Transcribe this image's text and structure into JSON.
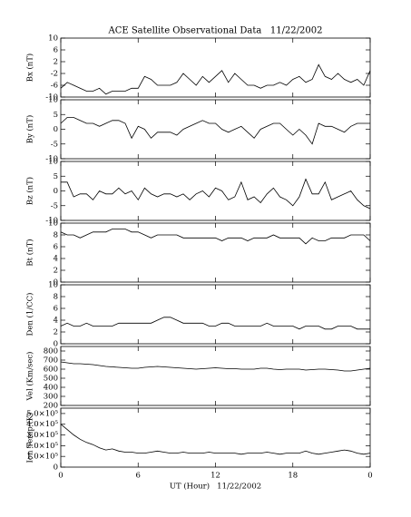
{
  "chart_data": [
    {
      "type": "line",
      "title": "ACE Satellite Observational Data   11/22/2002",
      "y_label": "Bx (nT)",
      "color": "#000000",
      "x": [
        0,
        0.5,
        1,
        1.5,
        2,
        2.5,
        3,
        3.5,
        4,
        4.5,
        5,
        5.5,
        6,
        6.5,
        7,
        7.5,
        8,
        8.5,
        9,
        9.5,
        10,
        10.5,
        11,
        11.5,
        12,
        12.5,
        13,
        13.5,
        14,
        14.5,
        15,
        15.5,
        16,
        16.5,
        17,
        17.5,
        18,
        18.5,
        19,
        19.5,
        20,
        20.5,
        21,
        21.5,
        22,
        22.5,
        23,
        23.5,
        24
      ],
      "values": [
        -7,
        -5,
        -6,
        -7,
        -8,
        -8,
        -7,
        -9,
        -8,
        -8,
        -8,
        -7,
        -7,
        -3,
        -4,
        -6,
        -6,
        -6,
        -5,
        -2,
        -4,
        -6,
        -3,
        -5,
        -3,
        -1,
        -5,
        -2,
        -4,
        -6,
        -6,
        -7,
        -6,
        -6,
        -5,
        -6,
        -4,
        -3,
        -5,
        -4,
        1,
        -3,
        -4,
        -2,
        -4,
        -5,
        -4,
        -6,
        -1
      ],
      "ylim": [
        -10,
        10
      ],
      "yticks": [
        -10,
        -6,
        -2,
        2,
        6,
        10
      ]
    },
    {
      "type": "line",
      "y_label": "By (nT)",
      "color": "#000000",
      "x": [
        0,
        0.5,
        1,
        1.5,
        2,
        2.5,
        3,
        3.5,
        4,
        4.5,
        5,
        5.5,
        6,
        6.5,
        7,
        7.5,
        8,
        8.5,
        9,
        9.5,
        10,
        10.5,
        11,
        11.5,
        12,
        12.5,
        13,
        13.5,
        14,
        14.5,
        15,
        15.5,
        16,
        16.5,
        17,
        17.5,
        18,
        18.5,
        19,
        19.5,
        20,
        20.5,
        21,
        21.5,
        22,
        22.5,
        23,
        23.5,
        24
      ],
      "values": [
        2,
        4,
        4,
        3,
        2,
        2,
        1,
        2,
        3,
        3,
        2,
        -3,
        1,
        0,
        -3,
        -1,
        -1,
        -1,
        -2,
        0,
        1,
        2,
        3,
        2,
        2,
        0,
        -1,
        0,
        1,
        -1,
        -3,
        0,
        1,
        2,
        2,
        0,
        -2,
        0,
        -2,
        -5,
        2,
        1,
        1,
        0,
        -1,
        1,
        2,
        2,
        2
      ],
      "ylim": [
        -10,
        10
      ],
      "yticks": [
        -10,
        -5,
        0,
        5,
        10
      ]
    },
    {
      "type": "line",
      "y_label": "Bz (nT)",
      "color": "#000000",
      "x": [
        0,
        0.5,
        1,
        1.5,
        2,
        2.5,
        3,
        3.5,
        4,
        4.5,
        5,
        5.5,
        6,
        6.5,
        7,
        7.5,
        8,
        8.5,
        9,
        9.5,
        10,
        10.5,
        11,
        11.5,
        12,
        12.5,
        13,
        13.5,
        14,
        14.5,
        15,
        15.5,
        16,
        16.5,
        17,
        17.5,
        18,
        18.5,
        19,
        19.5,
        20,
        20.5,
        21,
        21.5,
        22,
        22.5,
        23,
        23.5,
        24
      ],
      "values": [
        3,
        3,
        -2,
        -1,
        -1,
        -3,
        0,
        -1,
        -1,
        1,
        -1,
        0,
        -3,
        1,
        -1,
        -2,
        -1,
        -1,
        -2,
        -1,
        -3,
        -1,
        0,
        -2,
        1,
        0,
        -3,
        -2,
        3,
        -3,
        -2,
        -4,
        -1,
        1,
        -2,
        -3,
        -5,
        -2,
        4,
        -1,
        -1,
        3,
        -3,
        -2,
        -1,
        0,
        -3,
        -5,
        -6
      ],
      "ylim": [
        -10,
        10
      ],
      "yticks": [
        -10,
        -5,
        0,
        5,
        10
      ]
    },
    {
      "type": "line",
      "y_label": "Bt (nT)",
      "color": "#000000",
      "x": [
        0,
        0.5,
        1,
        1.5,
        2,
        2.5,
        3,
        3.5,
        4,
        4.5,
        5,
        5.5,
        6,
        6.5,
        7,
        7.5,
        8,
        8.5,
        9,
        9.5,
        10,
        10.5,
        11,
        11.5,
        12,
        12.5,
        13,
        13.5,
        14,
        14.5,
        15,
        15.5,
        16,
        16.5,
        17,
        17.5,
        18,
        18.5,
        19,
        19.5,
        20,
        20.5,
        21,
        21.5,
        22,
        22.5,
        23,
        23.5,
        24
      ],
      "values": [
        8.5,
        8,
        8,
        7.5,
        8,
        8.5,
        8.5,
        8.5,
        9,
        9,
        9,
        8.5,
        8.5,
        8,
        7.5,
        8,
        8,
        8,
        8,
        7.5,
        7.5,
        7.5,
        7.5,
        7.5,
        7.5,
        7,
        7.5,
        7.5,
        7.5,
        7,
        7.5,
        7.5,
        7.5,
        8,
        7.5,
        7.5,
        7.5,
        7.5,
        6.5,
        7.5,
        7,
        7,
        7.5,
        7.5,
        7.5,
        8,
        8,
        8,
        7
      ],
      "ylim": [
        0,
        10
      ],
      "yticks": [
        0,
        2,
        4,
        6,
        8,
        10
      ]
    },
    {
      "type": "line",
      "y_label": "Den (1/CC)",
      "color": "#000000",
      "x": [
        0,
        0.5,
        1,
        1.5,
        2,
        2.5,
        3,
        3.5,
        4,
        4.5,
        5,
        5.5,
        6,
        6.5,
        7,
        7.5,
        8,
        8.5,
        9,
        9.5,
        10,
        10.5,
        11,
        11.5,
        12,
        12.5,
        13,
        13.5,
        14,
        14.5,
        15,
        15.5,
        16,
        16.5,
        17,
        17.5,
        18,
        18.5,
        19,
        19.5,
        20,
        20.5,
        21,
        21.5,
        22,
        22.5,
        23,
        23.5,
        24
      ],
      "values": [
        3,
        3.5,
        3,
        3,
        3.5,
        3,
        3,
        3,
        3,
        3.5,
        3.5,
        3.5,
        3.5,
        3.5,
        3.5,
        4,
        4.5,
        4.5,
        4,
        3.5,
        3.5,
        3.5,
        3.5,
        3,
        3,
        3.5,
        3.5,
        3,
        3,
        3,
        3,
        3,
        3.5,
        3,
        3,
        3,
        3,
        2.5,
        3,
        3,
        3,
        2.5,
        2.5,
        3,
        3,
        3,
        2.5,
        2.5,
        2.5
      ],
      "ylim": [
        0,
        10
      ],
      "yticks": [
        0,
        2,
        4,
        6,
        8,
        10
      ]
    },
    {
      "type": "line",
      "y_label": "Vel (Km/sec)",
      "color": "#000000",
      "x": [
        0,
        0.5,
        1,
        1.5,
        2,
        2.5,
        3,
        3.5,
        4,
        4.5,
        5,
        5.5,
        6,
        6.5,
        7,
        7.5,
        8,
        8.5,
        9,
        9.5,
        10,
        10.5,
        11,
        11.5,
        12,
        12.5,
        13,
        13.5,
        14,
        14.5,
        15,
        15.5,
        16,
        16.5,
        17,
        17.5,
        18,
        18.5,
        19,
        19.5,
        20,
        20.5,
        21,
        21.5,
        22,
        22.5,
        23,
        23.5,
        24
      ],
      "values": [
        680,
        670,
        660,
        660,
        655,
        650,
        640,
        630,
        625,
        620,
        615,
        610,
        610,
        620,
        625,
        630,
        625,
        620,
        615,
        610,
        605,
        600,
        605,
        610,
        615,
        610,
        605,
        605,
        600,
        600,
        600,
        610,
        610,
        600,
        595,
        600,
        600,
        600,
        590,
        595,
        600,
        600,
        595,
        590,
        580,
        580,
        590,
        600,
        610
      ],
      "ylim": [
        200,
        850
      ],
      "yticks": [
        200,
        300,
        400,
        500,
        600,
        700,
        800
      ]
    },
    {
      "type": "line",
      "y_label": "Ion Temp (K)",
      "x_label": "UT (Hour)   11/22/2002",
      "color": "#000000",
      "x": [
        0,
        0.5,
        1,
        1.5,
        2,
        2.5,
        3,
        3.5,
        4,
        4.5,
        5,
        5.5,
        6,
        6.5,
        7,
        7.5,
        8,
        8.5,
        9,
        9.5,
        10,
        10.5,
        11,
        11.5,
        12,
        12.5,
        13,
        13.5,
        14,
        14.5,
        15,
        15.5,
        16,
        16.5,
        17,
        17.5,
        18,
        18.5,
        19,
        19.5,
        20,
        20.5,
        21,
        21.5,
        22,
        22.5,
        23,
        23.5,
        24
      ],
      "values": [
        400000,
        350000,
        300000,
        260000,
        230000,
        210000,
        180000,
        160000,
        170000,
        150000,
        140000,
        140000,
        130000,
        130000,
        140000,
        150000,
        140000,
        130000,
        130000,
        140000,
        130000,
        130000,
        130000,
        140000,
        130000,
        130000,
        130000,
        130000,
        120000,
        130000,
        130000,
        130000,
        140000,
        130000,
        120000,
        130000,
        130000,
        130000,
        150000,
        130000,
        120000,
        130000,
        140000,
        150000,
        160000,
        150000,
        130000,
        120000,
        130000
      ],
      "ylim": [
        0,
        550000
      ],
      "yticks": [
        0,
        {
          "value": 100000,
          "label": "1.0×10⁵"
        },
        {
          "value": 200000,
          "label": "2.0×10⁵"
        },
        {
          "value": 300000,
          "label": "3.0×10⁵"
        },
        {
          "value": 400000,
          "label": "4.0×10⁵"
        },
        {
          "value": 500000,
          "label": "5.0×10⁵"
        }
      ],
      "xlim": [
        0,
        24
      ],
      "xticks": [
        0,
        6,
        12,
        18,
        {
          "value": 24,
          "label": "0"
        }
      ]
    }
  ]
}
